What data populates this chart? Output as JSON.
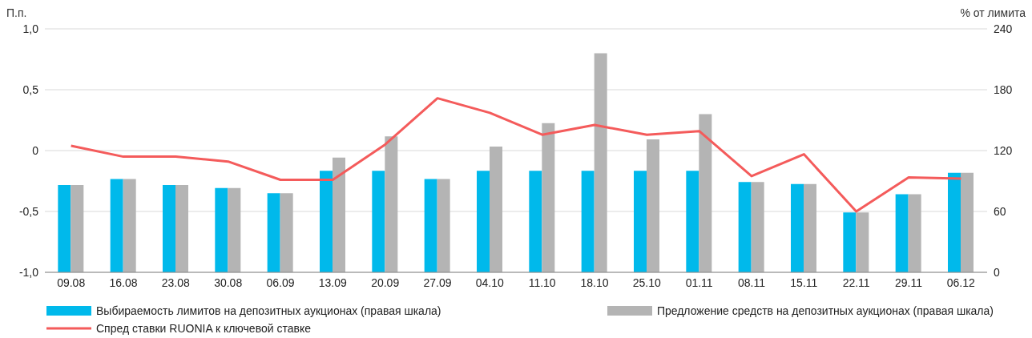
{
  "chart_data": {
    "type": "bar",
    "ylabel": "П.п.",
    "y2label": "% от лимита",
    "categories": [
      "09.08",
      "16.08",
      "23.08",
      "30.08",
      "06.09",
      "13.09",
      "20.09",
      "27.09",
      "04.10",
      "11.10",
      "18.10",
      "25.10",
      "01.11",
      "08.11",
      "15.11",
      "22.11",
      "29.11",
      "06.12"
    ],
    "series": [
      {
        "name": "Выбираемость лимитов на депозитных аукционах (правая шкала)",
        "axis": "y2",
        "color": "#00b9eb",
        "values": [
          86,
          92,
          86,
          83,
          78,
          100,
          100,
          92,
          100,
          100,
          100,
          100,
          100,
          89,
          87,
          59,
          77,
          98
        ]
      },
      {
        "name": "Предложение средств на депозитных аукционах (правая шкала)",
        "axis": "y2",
        "color": "#b4b4b4",
        "values": [
          86,
          92,
          86,
          83,
          78,
          113,
          134,
          92,
          124,
          147,
          216,
          131,
          156,
          89,
          87,
          59,
          77,
          98
        ]
      },
      {
        "name": "Спред ставки RUONIA к ключевой ставке",
        "type": "line",
        "color": "#f45b5b",
        "values": [
          0.04,
          -0.05,
          -0.05,
          -0.09,
          -0.24,
          -0.24,
          0.05,
          0.43,
          0.31,
          0.13,
          0.21,
          0.13,
          0.16,
          -0.21,
          -0.03,
          -0.5,
          -0.22,
          -0.23
        ]
      }
    ],
    "ylim": [
      -1,
      1
    ],
    "yticks": [
      {
        "value": -1,
        "label": "-1,0"
      },
      {
        "value": -0.5,
        "label": "-0,5"
      },
      0,
      {
        "value": 0.5,
        "label": "0,5"
      },
      {
        "value": 1,
        "label": "1,0"
      }
    ],
    "y2lim": [
      0,
      240
    ],
    "y2ticks": [
      0,
      60,
      120,
      180,
      240
    ],
    "grid": "y",
    "legend": "bottom",
    "marker": "none",
    "line_style": "solid"
  }
}
